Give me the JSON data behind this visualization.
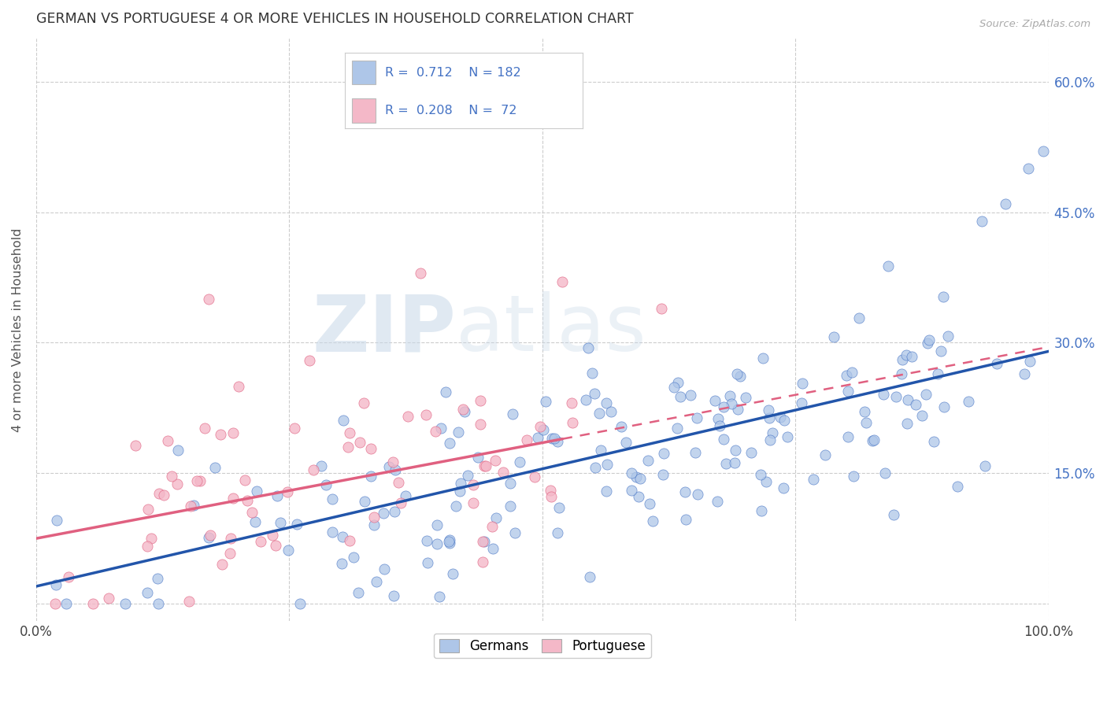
{
  "title": "GERMAN VS PORTUGUESE 4 OR MORE VEHICLES IN HOUSEHOLD CORRELATION CHART",
  "source": "Source: ZipAtlas.com",
  "ylabel": "4 or more Vehicles in Household",
  "xlim": [
    0.0,
    1.0
  ],
  "ylim": [
    -0.02,
    0.65
  ],
  "y_ticks": [
    0.0,
    0.15,
    0.3,
    0.45,
    0.6
  ],
  "x_ticks": [
    0.0,
    0.25,
    0.5,
    0.75,
    1.0
  ],
  "german_R": 0.712,
  "german_N": 182,
  "portuguese_R": 0.208,
  "portuguese_N": 72,
  "german_color": "#aec6e8",
  "german_edge_color": "#4472c4",
  "german_line_color": "#2255aa",
  "portuguese_color": "#f4b8c8",
  "portuguese_edge_color": "#e06080",
  "portuguese_line_color": "#e06080",
  "legend_entries": [
    "Germans",
    "Portuguese"
  ],
  "watermark_zip": "ZIP",
  "watermark_atlas": "atlas",
  "background_color": "#ffffff",
  "grid_color": "#cccccc",
  "right_tick_color": "#4472c4",
  "title_color": "#333333",
  "source_color": "#aaaaaa",
  "ylabel_color": "#555555"
}
